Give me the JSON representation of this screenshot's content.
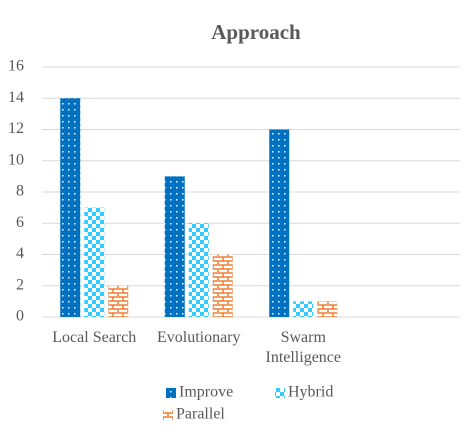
{
  "chart_data": {
    "type": "bar",
    "title": "Approach",
    "categories": [
      "Local Search",
      "Evolutionary",
      "Swarm Intelligence",
      null
    ],
    "series": [
      {
        "name": "Improve",
        "color": "#0070c0",
        "values": [
          14,
          9,
          12,
          null
        ]
      },
      {
        "name": "Hybrid",
        "color": "#33ccff",
        "values": [
          7,
          6,
          1,
          null
        ]
      },
      {
        "name": "Parallel",
        "color": "#ed7d31",
        "values": [
          2,
          4,
          1,
          null
        ]
      }
    ],
    "ylim": [
      0,
      16
    ],
    "yticks": [
      0,
      2,
      4,
      6,
      8,
      10,
      12,
      14,
      16
    ],
    "grid": true,
    "legend": "bottom"
  }
}
